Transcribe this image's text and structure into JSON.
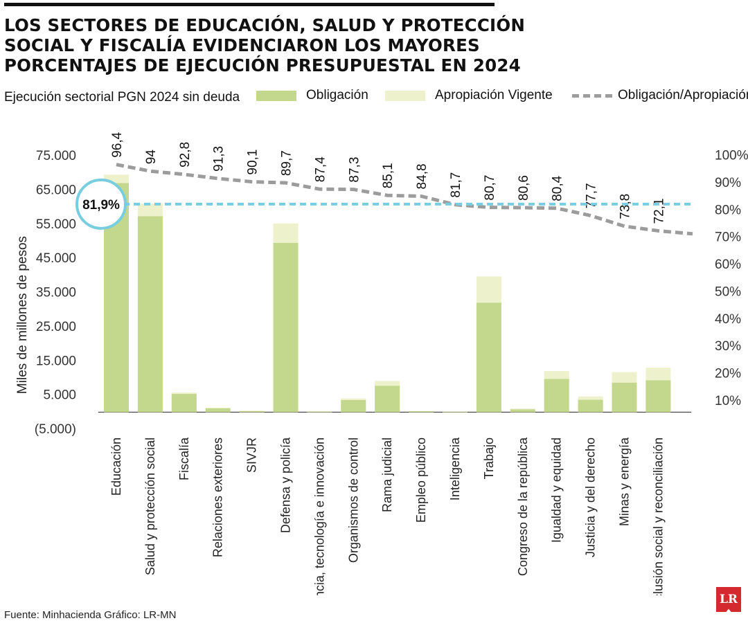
{
  "header": {
    "title": "LOS SECTORES DE EDUCACIÓN, SALUD Y PROTECCIÓN SOCIAL Y FISCALÍA EVIDENCIARON LOS MAYORES PORCENTAJES DE EJECUCIÓN PRESUPUESTAL EN 2024",
    "subtitle": "Ejecución sectorial PGN 2024 sin deuda"
  },
  "legend": {
    "obligacion": "Obligación",
    "apropiacion": "Apropiación Vigente",
    "ratio": "Obligación/Apropiación"
  },
  "footer": {
    "source": "Fuente: Minhacienda   Gráfico: LR-MN",
    "logo": "LR"
  },
  "colors": {
    "obligacion": "#c3d88c",
    "apropiacion": "#eef2cc",
    "ratio_line": "#9c9c9c",
    "average_line": "#79cde0"
  },
  "chart_data": {
    "type": "bar",
    "categories": [
      "Educación",
      "Salud y protección social",
      "Fiscalía",
      "Relaciones exteriores",
      "SIVJR",
      "Defensa y policía",
      "Ciencia, tecnología e innovación",
      "Organismos de control",
      "Rama judicial",
      "Empleo público",
      "Inteligencia",
      "Trabajo",
      "Congreso de la república",
      "Igualdad y equidad",
      "Justicia y del derecho",
      "Minas y energía",
      "Inclusión social y reconciliación"
    ],
    "series": [
      {
        "name": "Obligación",
        "axis": "left",
        "values": [
          67000,
          57300,
          5300,
          1100,
          300,
          49500,
          150,
          3500,
          7700,
          250,
          80,
          32000,
          800,
          9700,
          3600,
          8600,
          9300
        ]
      },
      {
        "name": "Apropiación Vigente",
        "axis": "left",
        "values": [
          69500,
          61000,
          5700,
          1300,
          350,
          55200,
          180,
          4000,
          9100,
          300,
          100,
          39700,
          1000,
          12000,
          4600,
          11700,
          13000
        ]
      },
      {
        "name": "Obligación/Apropiación",
        "axis": "right",
        "type": "line",
        "values": [
          96.4,
          94,
          92.8,
          91.3,
          90.1,
          89.7,
          87.4,
          87.3,
          85.1,
          84.8,
          81.7,
          80.7,
          80.6,
          80.4,
          77.7,
          73.8,
          72.1
        ],
        "labels": [
          "96,4",
          "94",
          "92,8",
          "91,3",
          "90,1",
          "89,7",
          "87,4",
          "87,3",
          "85,1",
          "84,8",
          "81,7",
          "80,7",
          "80,6",
          "80,4",
          "77,7",
          "73,8",
          "72,1"
        ],
        "extended_end": 71
      }
    ],
    "ylabel": "Miles de millones de pesos",
    "yticks": [
      "75.000",
      "65.000",
      "55.000",
      "45.000",
      "35.000",
      "25.000",
      "15.000",
      "5.000",
      "(5.000)"
    ],
    "ytick_values": [
      75000,
      65000,
      55000,
      45000,
      35000,
      25000,
      15000,
      5000,
      -5000
    ],
    "ylim": [
      -5000,
      75000
    ],
    "y2ticks": [
      "100%",
      "90%",
      "80%",
      "70%",
      "60%",
      "50%",
      "40%",
      "30%",
      "20%",
      "10%"
    ],
    "y2tick_values": [
      100,
      90,
      80,
      70,
      60,
      50,
      40,
      30,
      20,
      10
    ],
    "y2lim": [
      5,
      100
    ],
    "average": {
      "value": 81.9,
      "label": "81,9%"
    },
    "grid": false,
    "legend_position": "top"
  }
}
